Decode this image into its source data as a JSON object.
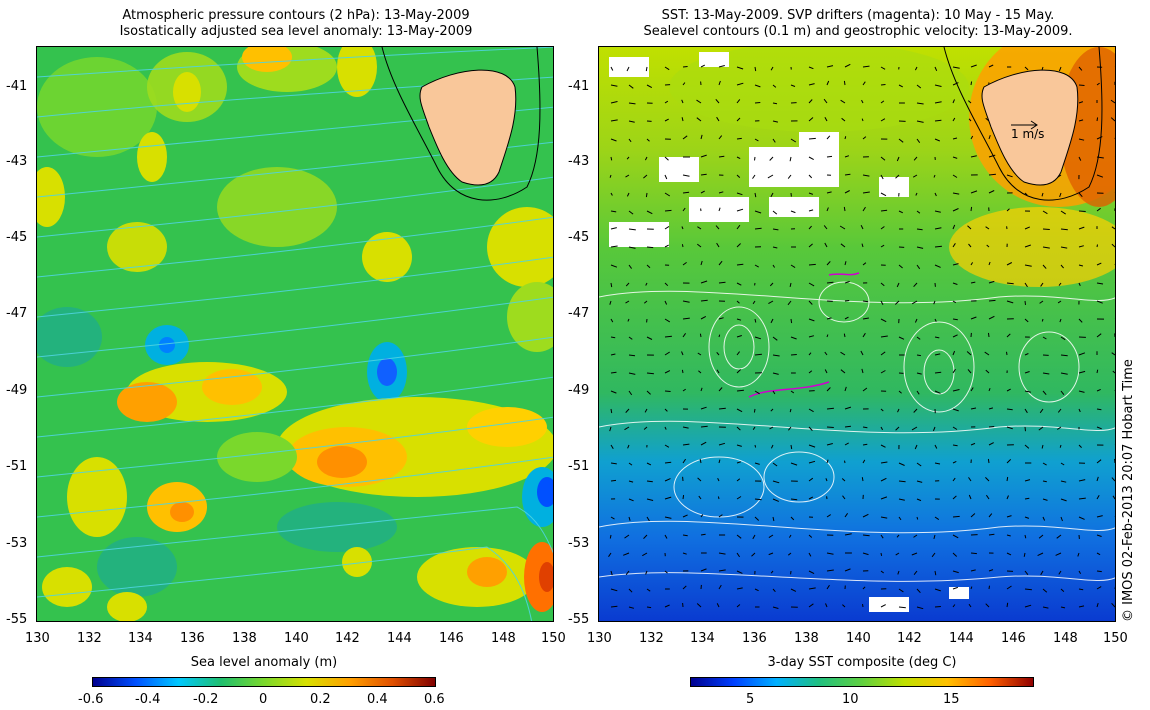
{
  "left_panel": {
    "title_line1": "Atmospheric pressure contours (2 hPa): 13-May-2009",
    "title_line2": "Isostatically adjusted sea level anomaly: 13-May-2009",
    "colorbar_label": "Sea level anomaly (m)",
    "colorbar_ticks": [
      "-0.6",
      "-0.4",
      "-0.2",
      "0",
      "0.2",
      "0.4",
      "0.6"
    ],
    "colormap": [
      "#00008f",
      "#0050ff",
      "#00c8ff",
      "#1fbf6e",
      "#7ad82c",
      "#d8e000",
      "#ffa000",
      "#e05000",
      "#800000"
    ]
  },
  "right_panel": {
    "title_line1": "SST: 13-May-2009. SVP drifters (magenta): 10 May - 15 May.",
    "title_line2": "Sealevel contours (0.1 m) and geostrophic velocity: 13-May-2009.",
    "colorbar_label": "3-day SST composite (deg C)",
    "colorbar_ticks": [
      "5",
      "10",
      "15"
    ],
    "scale_arrow_label": "1 m/s",
    "colormap": [
      "#00008f",
      "#0040ff",
      "#00b0ff",
      "#20c080",
      "#60d040",
      "#c0e000",
      "#ffc000",
      "#ff6000",
      "#900000"
    ]
  },
  "axes": {
    "lat_ticks": [
      "-41",
      "-43",
      "-45",
      "-47",
      "-49",
      "-51",
      "-53",
      "-55"
    ],
    "lon_ticks": [
      "130",
      "132",
      "134",
      "136",
      "138",
      "140",
      "142",
      "144",
      "146",
      "148",
      "150"
    ],
    "lat_range": [
      -55,
      -40
    ],
    "lon_range": [
      130,
      150
    ]
  },
  "watermark": "© IMOS 02-Feb-2013 20:07 Hobart Time",
  "colors": {
    "land": "#f9c79a",
    "pressure_contour": "#4fd4e0",
    "sea_level_contour": "#ffffff",
    "drifter": "#d000d0"
  }
}
